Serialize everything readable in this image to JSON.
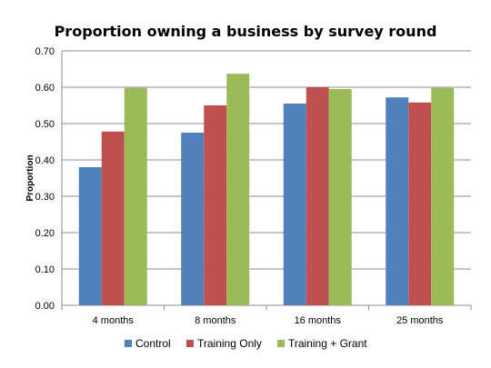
{
  "chart_data": {
    "type": "bar",
    "title": "Proportion owning a business by survey round",
    "xlabel": "",
    "ylabel": "Proportion",
    "ylim": [
      0,
      0.7
    ],
    "yticks": [
      "0.00",
      "0.10",
      "0.20",
      "0.30",
      "0.40",
      "0.50",
      "0.60",
      "0.70"
    ],
    "grid": true,
    "legend_position": "bottom",
    "categories": [
      "4 months",
      "8 months",
      "16 months",
      "25 months"
    ],
    "series": [
      {
        "name": "Control",
        "color": "#4f81bd",
        "values": [
          0.38,
          0.475,
          0.555,
          0.572
        ]
      },
      {
        "name": "Training Only",
        "color": "#c0504d",
        "values": [
          0.478,
          0.55,
          0.6,
          0.558
        ]
      },
      {
        "name": "Training + Grant",
        "color": "#9bbb59",
        "values": [
          0.598,
          0.637,
          0.595,
          0.598
        ]
      }
    ]
  }
}
